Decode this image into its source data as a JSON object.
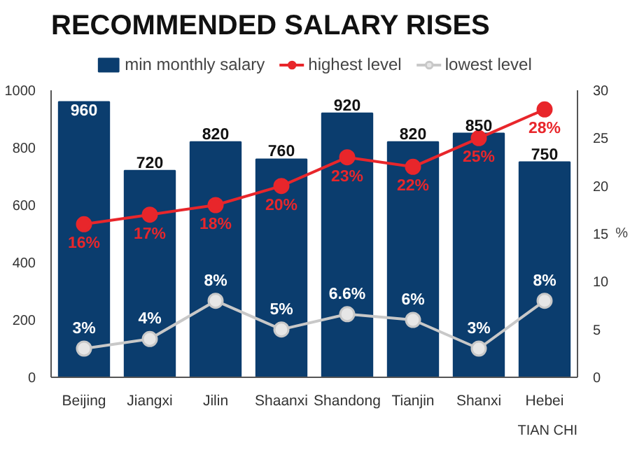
{
  "chart_data": {
    "type": "bar",
    "title": "RECOMMENDED SALARY RISES",
    "categories": [
      "Beijing",
      "Jiangxi",
      "Jilin",
      "Shaanxi",
      "Shandong",
      "Tianjin",
      "Shanxi",
      "Hebei"
    ],
    "series": [
      {
        "name": "min monthly salary",
        "color": "#0b3d6e",
        "values": [
          960,
          720,
          820,
          760,
          920,
          820,
          850,
          750
        ],
        "value_labels": [
          "960",
          "720",
          "820",
          "760",
          "920",
          "820",
          "850",
          "750"
        ]
      },
      {
        "name": "highest level",
        "type": "line",
        "axis": "y2",
        "marker": "circle",
        "color": "#e8262b",
        "values": [
          16,
          17,
          18,
          20,
          23,
          22,
          25,
          28
        ],
        "value_labels": [
          "16%",
          "17%",
          "18%",
          "20%",
          "23%",
          "22%",
          "25%",
          "28%"
        ]
      },
      {
        "name": "lowest level",
        "type": "line",
        "axis": "y2",
        "marker": "circle",
        "color": "#c8c8c8",
        "values": [
          3,
          4,
          8,
          5,
          6.6,
          6,
          3,
          8
        ],
        "value_labels": [
          "3%",
          "4%",
          "8%",
          "5%",
          "6.6%",
          "6%",
          "3%",
          "8%"
        ]
      }
    ],
    "ylim": [
      0,
      1000
    ],
    "yticks": [
      0,
      200,
      400,
      600,
      800,
      1000
    ],
    "y2lim": [
      0,
      30
    ],
    "y2ticks": [
      0,
      5,
      10,
      15,
      20,
      25,
      30
    ],
    "y2label": "%",
    "grid": false,
    "legend": "top",
    "annotations": [
      "TIAN CHI"
    ]
  }
}
